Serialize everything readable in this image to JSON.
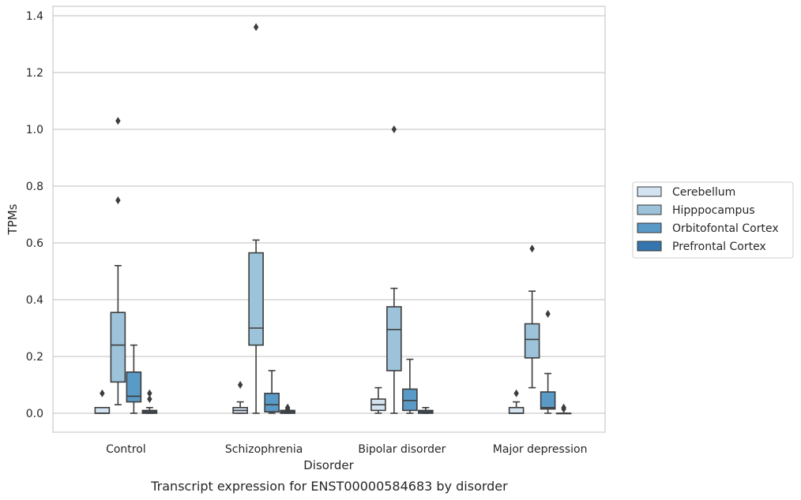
{
  "chart_data": {
    "type": "boxplot",
    "caption": "Transcript expression for ENST00000584683 by disorder",
    "xlabel": "Disorder",
    "ylabel": "TPMs",
    "ylim": [
      -0.065,
      1.43
    ],
    "yticks": [
      0.0,
      0.2,
      0.4,
      0.6,
      0.8,
      1.0,
      1.2,
      1.4
    ],
    "ytick_labels": [
      "0.0",
      "0.2",
      "0.4",
      "0.6",
      "0.8",
      "1.0",
      "1.2",
      "1.4"
    ],
    "grid": "horizontal",
    "legend_position": "right",
    "categories": [
      "Control",
      "Schizophrenia",
      "Bipolar disorder",
      "Major depression"
    ],
    "series": [
      {
        "name": "Cerebellum",
        "color": "#d4e3f1",
        "boxes": [
          {
            "whislo": 0.0,
            "q1": 0.0,
            "med": 0.0,
            "q3": 0.02,
            "whishi": 0.02,
            "fliers": [
              0.07
            ]
          },
          {
            "whislo": 0.0,
            "q1": 0.0,
            "med": 0.01,
            "q3": 0.02,
            "whishi": 0.04,
            "fliers": [
              0.1
            ]
          },
          {
            "whislo": 0.0,
            "q1": 0.01,
            "med": 0.03,
            "q3": 0.05,
            "whishi": 0.09,
            "fliers": []
          },
          {
            "whislo": 0.0,
            "q1": 0.0,
            "med": 0.0,
            "q3": 0.02,
            "whishi": 0.04,
            "fliers": [
              0.07
            ]
          }
        ]
      },
      {
        "name": "Hipppocampus",
        "color": "#9cc3da",
        "boxes": [
          {
            "whislo": 0.03,
            "q1": 0.11,
            "med": 0.24,
            "q3": 0.355,
            "whishi": 0.52,
            "fliers": [
              0.75,
              1.03
            ]
          },
          {
            "whislo": 0.0,
            "q1": 0.24,
            "med": 0.3,
            "q3": 0.565,
            "whishi": 0.61,
            "fliers": [
              1.36
            ]
          },
          {
            "whislo": 0.0,
            "q1": 0.15,
            "med": 0.295,
            "q3": 0.375,
            "whishi": 0.44,
            "fliers": [
              1.0
            ]
          },
          {
            "whislo": 0.09,
            "q1": 0.195,
            "med": 0.26,
            "q3": 0.315,
            "whishi": 0.43,
            "fliers": [
              0.58
            ]
          }
        ]
      },
      {
        "name": "Orbitofontal Cortex",
        "color": "#5a9ac7",
        "boxes": [
          {
            "whislo": 0.0,
            "q1": 0.04,
            "med": 0.06,
            "q3": 0.145,
            "whishi": 0.24,
            "fliers": []
          },
          {
            "whislo": 0.0,
            "q1": 0.005,
            "med": 0.03,
            "q3": 0.07,
            "whishi": 0.15,
            "fliers": []
          },
          {
            "whislo": 0.0,
            "q1": 0.01,
            "med": 0.045,
            "q3": 0.085,
            "whishi": 0.19,
            "fliers": []
          },
          {
            "whislo": 0.0,
            "q1": 0.015,
            "med": 0.02,
            "q3": 0.075,
            "whishi": 0.14,
            "fliers": [
              0.35
            ]
          }
        ]
      },
      {
        "name": "Prefrontal Cortex",
        "color": "#3475ad",
        "boxes": [
          {
            "whislo": 0.0,
            "q1": 0.0,
            "med": 0.005,
            "q3": 0.01,
            "whishi": 0.02,
            "fliers": [
              0.05,
              0.07
            ]
          },
          {
            "whislo": 0.0,
            "q1": 0.0,
            "med": 0.005,
            "q3": 0.01,
            "whishi": 0.01,
            "fliers": [
              0.015,
              0.02
            ]
          },
          {
            "whislo": 0.0,
            "q1": 0.0,
            "med": 0.005,
            "q3": 0.01,
            "whishi": 0.02,
            "fliers": []
          },
          {
            "whislo": 0.0,
            "q1": 0.0,
            "med": 0.0,
            "q3": 0.0,
            "whishi": 0.0,
            "fliers": [
              0.015,
              0.02
            ]
          }
        ]
      }
    ]
  }
}
